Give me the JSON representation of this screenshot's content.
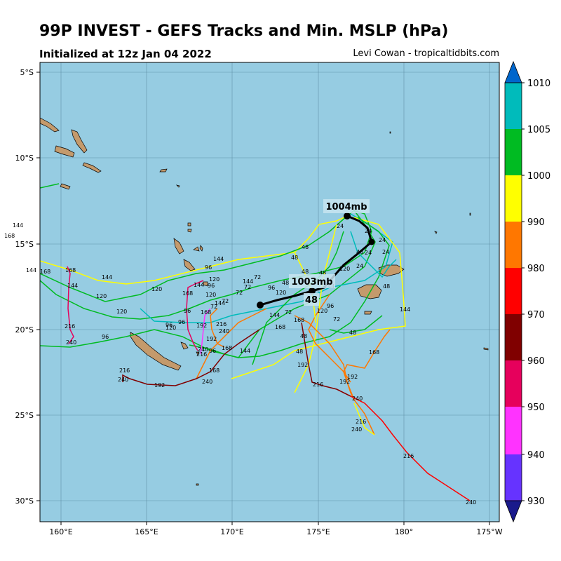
{
  "header": {
    "title": "99P INVEST - GEFS Tracks and Min. MSLP (hPa)",
    "subtitle": "Initialized at 12z Jan 04 2022",
    "credit": "Levi Cowan - tropicaltidbits.com"
  },
  "map": {
    "lat_labels": [
      "5°S",
      "10°S",
      "15°S",
      "20°S",
      "25°S",
      "30°S"
    ],
    "lon_labels": [
      "160°E",
      "165°E",
      "170°E",
      "175°E",
      "180°",
      "175°W"
    ],
    "ocean_color": "#96cce2",
    "land_color": "#c49a6c",
    "mean_track_color": "#000000",
    "labels": {
      "start_pressure": "1004mb",
      "end_pressure": "1003mb",
      "end_hour": "48"
    }
  },
  "colorbar": {
    "ticks": [
      "930",
      "940",
      "950",
      "960",
      "970",
      "980",
      "990",
      "1000",
      "1005",
      "1010"
    ],
    "colors": [
      "#1a1a8c",
      "#6633ff",
      "#ff33ff",
      "#e6005c",
      "#800000",
      "#ff0000",
      "#ff7700",
      "#ffff00",
      "#00bb22",
      "#00bbbb",
      "#0066cc"
    ]
  },
  "track_labels": [
    "24",
    "48",
    "72",
    "96",
    "120",
    "144",
    "168",
    "192",
    "216",
    "240"
  ]
}
